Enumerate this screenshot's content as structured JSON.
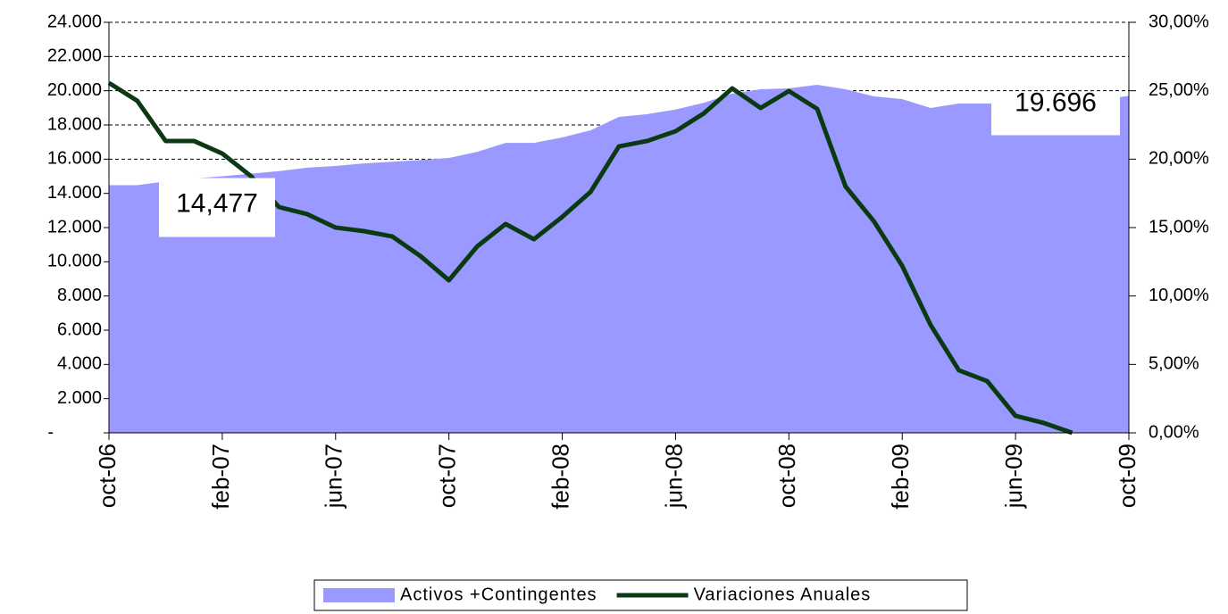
{
  "chart_data": {
    "type": "combo",
    "categories": [
      "oct-06",
      null,
      null,
      null,
      "feb-07",
      null,
      null,
      null,
      "jun-07",
      null,
      null,
      null,
      "oct-07",
      null,
      null,
      null,
      "feb-08",
      null,
      null,
      null,
      "jun-08",
      null,
      null,
      null,
      "oct-08",
      null,
      null,
      null,
      "feb-09",
      null,
      null,
      null,
      "jun-09",
      null,
      null,
      null,
      "oct-09"
    ],
    "series": [
      {
        "name": "Activos +Contingentes",
        "type": "area",
        "axis": "y",
        "color": "#9999ff",
        "values": [
          14477,
          14477,
          14700,
          14870,
          15000,
          15150,
          15300,
          15500,
          15600,
          15750,
          15850,
          15950,
          16070,
          16430,
          16950,
          16950,
          17270,
          17690,
          18470,
          18630,
          18900,
          19300,
          19830,
          20090,
          20140,
          20350,
          20090,
          19670,
          19510,
          18990,
          19250,
          19250,
          19250,
          19300,
          19400,
          19500,
          19696
        ],
        "value_labels": [
          "14,477",
          null,
          null,
          null,
          null,
          null,
          null,
          null,
          null,
          null,
          null,
          null,
          null,
          null,
          null,
          null,
          null,
          null,
          null,
          null,
          null,
          null,
          null,
          null,
          null,
          null,
          null,
          null,
          null,
          null,
          null,
          null,
          null,
          null,
          null,
          null,
          "19.696"
        ]
      },
      {
        "name": "Variaciones Anuales",
        "type": "line",
        "axis": "y2",
        "color": "#0b3a12",
        "values": [
          25.57,
          24.26,
          21.33,
          21.33,
          20.41,
          18.78,
          16.5,
          15.98,
          15.0,
          14.74,
          14.35,
          12.91,
          11.15,
          13.63,
          15.26,
          14.15,
          15.78,
          17.61,
          20.93,
          21.33,
          22.04,
          23.35,
          25.17,
          23.74,
          24.98,
          23.67,
          18.0,
          15.46,
          12.2,
          7.89,
          4.57,
          3.78,
          1.24,
          0.72,
          0,
          null,
          null
        ]
      }
    ],
    "ylim": [
      0,
      24000
    ],
    "yticks": [
      {
        "value": 0,
        "label": "-"
      },
      {
        "value": 2000,
        "label": "2.000"
      },
      {
        "value": 4000,
        "label": "4.000"
      },
      {
        "value": 6000,
        "label": "6.000"
      },
      {
        "value": 8000,
        "label": "8.000"
      },
      {
        "value": 10000,
        "label": "10.000"
      },
      {
        "value": 12000,
        "label": "12.000"
      },
      {
        "value": 14000,
        "label": "14.000"
      },
      {
        "value": 16000,
        "label": "16.000"
      },
      {
        "value": 18000,
        "label": "18.000"
      },
      {
        "value": 20000,
        "label": "20.000"
      },
      {
        "value": 22000,
        "label": "22.000"
      },
      {
        "value": 24000,
        "label": "24.000"
      }
    ],
    "y2lim": [
      0,
      30
    ],
    "y2ticks": [
      {
        "value": 0,
        "label": "0,00%"
      },
      {
        "value": 5,
        "label": "5,00%"
      },
      {
        "value": 10,
        "label": "10,00%"
      },
      {
        "value": 15,
        "label": "15,00%"
      },
      {
        "value": 20,
        "label": "20,00%"
      },
      {
        "value": 25,
        "label": "25,00%"
      },
      {
        "value": 30,
        "label": "30,00%"
      }
    ],
    "grid": true,
    "legend": "bottom"
  }
}
